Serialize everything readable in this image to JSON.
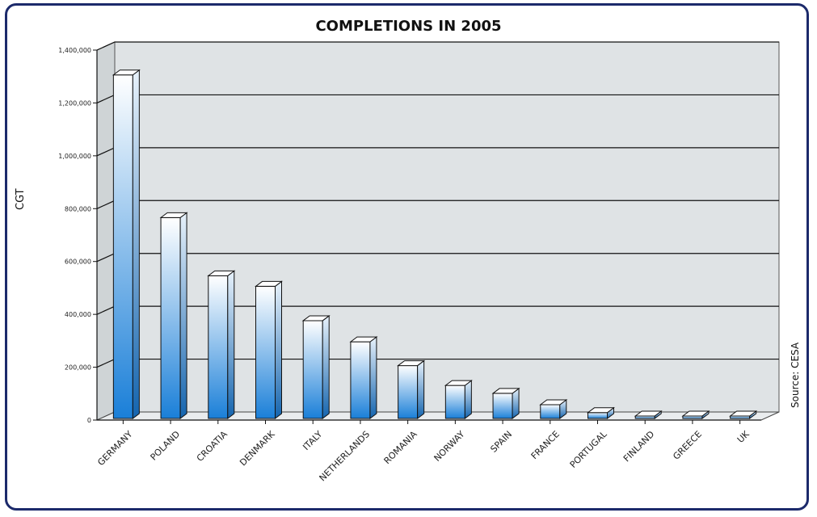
{
  "chart_data": {
    "type": "bar",
    "title": "COMPLETIONS IN 2005",
    "ylabel": "CGT",
    "xlabel": "",
    "source": "Source: CESA",
    "categories": [
      "GERMANY",
      "POLAND",
      "CROATIA",
      "DENMARK",
      "ITALY",
      "NETHERLANDS",
      "ROMANIA",
      "NORWAY",
      "SPAIN",
      "FRANCE",
      "PORTUGAL",
      "FINLAND",
      "GREECE",
      "UK"
    ],
    "values": [
      1300000,
      760000,
      540000,
      500000,
      370000,
      290000,
      200000,
      125000,
      95000,
      52000,
      22000,
      8000,
      3000,
      3000
    ],
    "ylim": [
      0,
      1400000
    ],
    "yticks": [
      0,
      200000,
      400000,
      600000,
      800000,
      1000000,
      1200000,
      1400000
    ],
    "ytick_labels": [
      "0",
      "200,000",
      "400,000",
      "600,000",
      "800,000",
      "1,000,000",
      "1,200,000",
      "1,400,000"
    ],
    "grid": true,
    "colors": {
      "bar_top": "#ffffff",
      "bar_bottom": "#1a7fd8",
      "wall": "#dfe3e5",
      "frame": "#1c2a6b"
    }
  }
}
